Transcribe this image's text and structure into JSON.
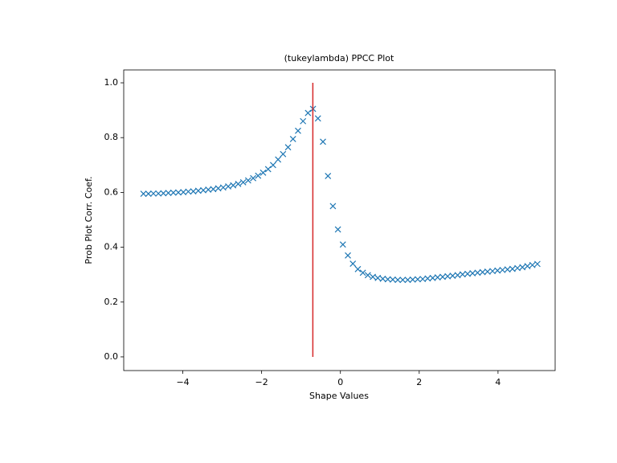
{
  "chart_data": {
    "type": "scatter",
    "title": "(tukeylambda) PPCC Plot",
    "xlabel": "Shape Values",
    "ylabel": "Prob Plot Corr. Coef.",
    "marker": "x",
    "color": "#1f77b4",
    "x": [
      -5,
      -4.873,
      -4.747,
      -4.62,
      -4.494,
      -4.367,
      -4.241,
      -4.114,
      -3.987,
      -3.861,
      -3.734,
      -3.608,
      -3.481,
      -3.354,
      -3.228,
      -3.101,
      -2.975,
      -2.848,
      -2.722,
      -2.595,
      -2.468,
      -2.342,
      -2.215,
      -2.089,
      -1.962,
      -1.835,
      -1.709,
      -1.582,
      -1.456,
      -1.329,
      -1.203,
      -1.076,
      -0.949,
      -0.823,
      -0.696,
      -0.57,
      -0.443,
      -0.316,
      -0.19,
      -0.063,
      0.063,
      0.19,
      0.316,
      0.443,
      0.57,
      0.696,
      0.823,
      0.949,
      1.076,
      1.203,
      1.329,
      1.456,
      1.582,
      1.709,
      1.835,
      1.962,
      2.089,
      2.215,
      2.342,
      2.468,
      2.595,
      2.722,
      2.848,
      2.975,
      3.101,
      3.228,
      3.354,
      3.481,
      3.608,
      3.734,
      3.861,
      3.987,
      4.114,
      4.241,
      4.367,
      4.494,
      4.62,
      4.747,
      4.873,
      5
    ],
    "values": [
      0.595,
      0.595,
      0.596,
      0.596,
      0.597,
      0.598,
      0.599,
      0.6,
      0.601,
      0.603,
      0.604,
      0.606,
      0.608,
      0.61,
      0.612,
      0.615,
      0.618,
      0.622,
      0.626,
      0.631,
      0.637,
      0.644,
      0.652,
      0.661,
      0.672,
      0.685,
      0.7,
      0.72,
      0.74,
      0.765,
      0.795,
      0.825,
      0.86,
      0.89,
      0.905,
      0.87,
      0.785,
      0.66,
      0.55,
      0.465,
      0.41,
      0.37,
      0.34,
      0.32,
      0.307,
      0.298,
      0.292,
      0.288,
      0.285,
      0.283,
      0.282,
      0.281,
      0.281,
      0.281,
      0.282,
      0.283,
      0.284,
      0.286,
      0.288,
      0.29,
      0.292,
      0.294,
      0.296,
      0.298,
      0.301,
      0.303,
      0.305,
      0.307,
      0.309,
      0.311,
      0.313,
      0.315,
      0.317,
      0.319,
      0.321,
      0.324,
      0.327,
      0.331,
      0.335,
      0.339
    ],
    "vline": {
      "x": -0.7,
      "ymin": 0,
      "ymax": 1,
      "color": "#d62728"
    },
    "xlim": [
      -5.5,
      5.45
    ],
    "ylim": [
      -0.05,
      1.047
    ],
    "xticks": [
      {
        "value": -4,
        "label": "−4"
      },
      {
        "value": -2,
        "label": "−2"
      },
      0,
      2,
      4
    ],
    "yticks": [
      {
        "value": 0,
        "label": "0.0"
      },
      0.2,
      0.4,
      0.6,
      0.8,
      {
        "value": 1,
        "label": "1.0"
      }
    ]
  }
}
